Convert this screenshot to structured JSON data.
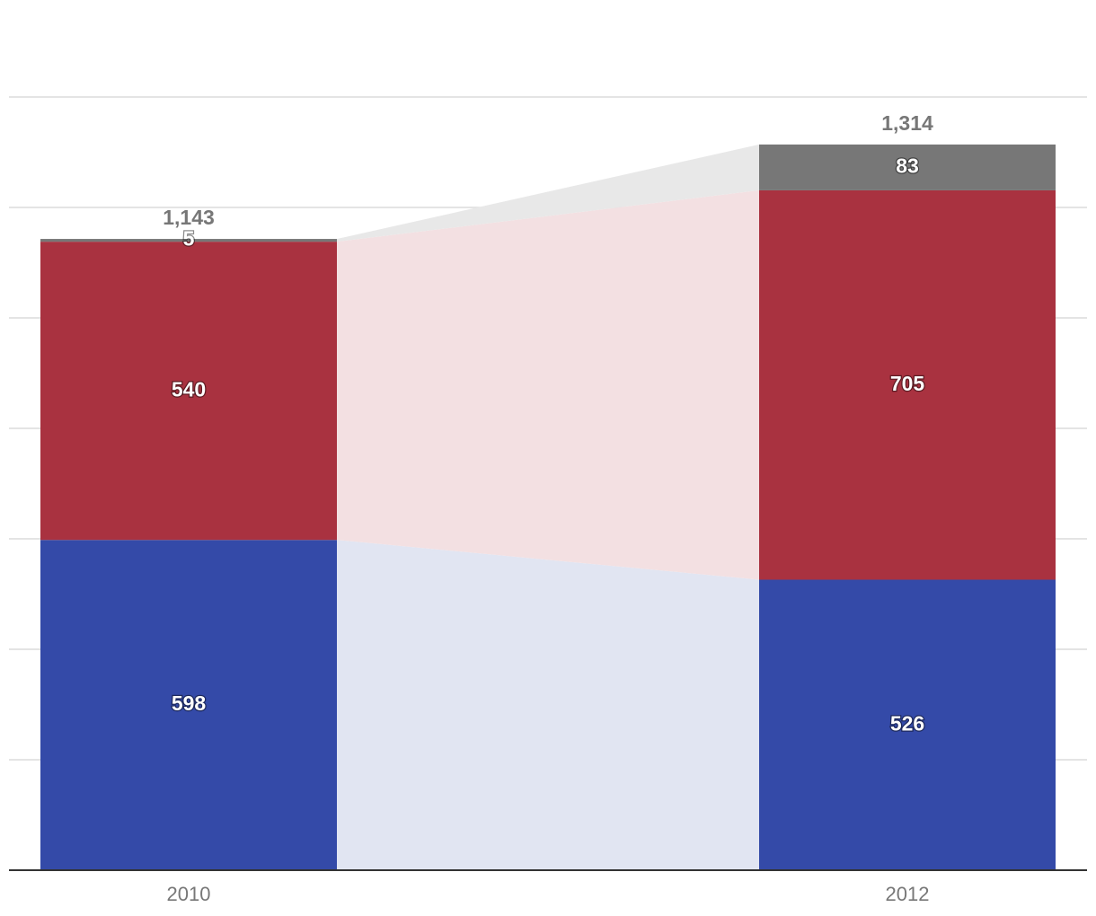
{
  "chart_data": {
    "type": "bar",
    "stacked": true,
    "categories": [
      "2010",
      "2012"
    ],
    "series": [
      {
        "values": [
          598,
          526
        ],
        "color": "#344aa8",
        "band_color": "#e1e5f2"
      },
      {
        "values": [
          540,
          705
        ],
        "color": "#a93240",
        "band_color": "#f3e0e2"
      },
      {
        "values": [
          5,
          83
        ],
        "color": "#777777",
        "band_color": "#e8e8e8"
      }
    ],
    "totals": [
      "1,143",
      "1,314"
    ],
    "ylim": [
      0,
      1400
    ],
    "grid": true
  }
}
